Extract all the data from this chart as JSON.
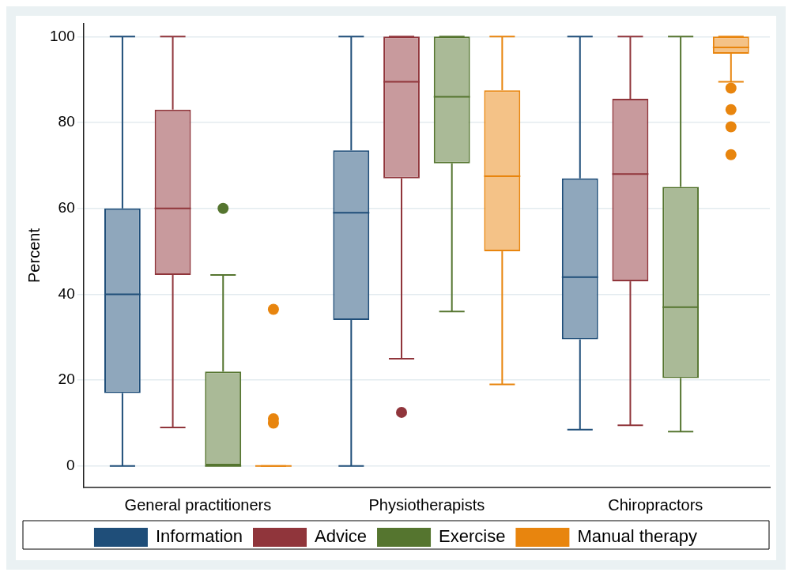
{
  "chart_data": {
    "type": "box",
    "ylabel": "Percent",
    "categories": [
      "General practitioners",
      "Physiotherapists",
      "Chiropractors"
    ],
    "ylim": [
      -5,
      103
    ],
    "yticks": [
      0,
      20,
      40,
      60,
      80,
      100
    ],
    "grid": "y",
    "legend": "bottom",
    "series": [
      {
        "name": "Information",
        "color": "#1f4e79",
        "boxes": [
          {
            "low": 0,
            "q1": 17,
            "median": 40,
            "q3": 60,
            "high": 100
          },
          {
            "low": 0,
            "q1": 34,
            "median": 59,
            "q3": 73.5,
            "high": 100
          },
          {
            "low": 8.5,
            "q1": 29.5,
            "median": 44,
            "q3": 67,
            "high": 100
          }
        ]
      },
      {
        "name": "Advice",
        "color": "#90353b",
        "boxes": [
          {
            "low": 9,
            "q1": 44.5,
            "median": 60,
            "q3": 83,
            "high": 100
          },
          {
            "low": 25,
            "q1": 67,
            "median": 89.5,
            "q3": 100,
            "high": 100,
            "outliers": [
              12.5
            ]
          },
          {
            "low": 9.5,
            "q1": 43,
            "median": 68,
            "q3": 85.5,
            "high": 100
          }
        ]
      },
      {
        "name": "Exercise",
        "color": "#55752f",
        "boxes": [
          {
            "low": 0,
            "q1": 0,
            "median": 0,
            "q3": 22,
            "high": 44.5,
            "outliers": [
              60
            ]
          },
          {
            "low": 36,
            "q1": 70.5,
            "median": 86,
            "q3": 100,
            "high": 100
          },
          {
            "low": 8,
            "q1": 20.5,
            "median": 37,
            "q3": 65,
            "high": 100
          }
        ]
      },
      {
        "name": "Manual therapy",
        "color": "#e8850e",
        "boxes": [
          {
            "low": 0,
            "q1": 0,
            "median": 0,
            "q3": 0,
            "high": 0,
            "outliers": [
              36.5,
              11,
              10
            ]
          },
          {
            "low": 19,
            "q1": 50,
            "median": 67.5,
            "q3": 87.5,
            "high": 100
          },
          {
            "low": 89.5,
            "q1": 96,
            "median": 97.5,
            "q3": 100,
            "high": 100,
            "outliers": [
              88,
              83,
              79,
              72.5
            ]
          }
        ]
      }
    ]
  }
}
